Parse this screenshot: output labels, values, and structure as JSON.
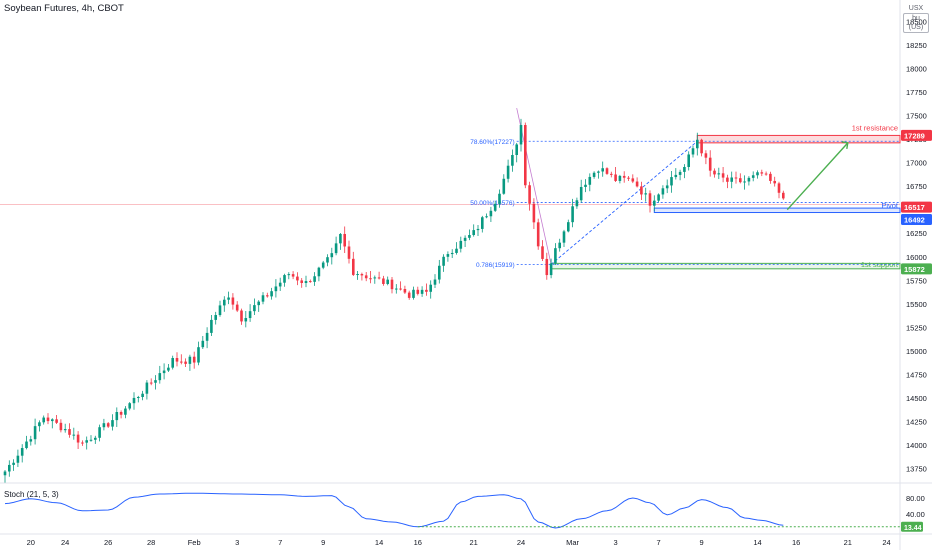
{
  "header": {
    "title": "Soybean Futures, 4h, CBOT",
    "currency": "USX",
    "unit": "bu (US)"
  },
  "chart_data": {
    "type": "candlestick",
    "y_axis": {
      "range": [
        13650,
        18600
      ],
      "ticks": [
        "18500",
        "18250",
        "18000",
        "17750",
        "17500",
        "17250",
        "17000",
        "16750",
        "16500",
        "16250",
        "16000",
        "15750",
        "15500",
        "15250",
        "15000",
        "14750",
        "14500",
        "14250",
        "14000",
        "13750"
      ]
    },
    "x_axis": {
      "range": [
        0,
        209
      ],
      "ticks": [
        {
          "label": "20",
          "x": 6
        },
        {
          "label": "24",
          "x": 14
        },
        {
          "label": "26",
          "x": 24
        },
        {
          "label": "28",
          "x": 34
        },
        {
          "label": "Feb",
          "x": 44
        },
        {
          "label": "3",
          "x": 54
        },
        {
          "label": "7",
          "x": 64
        },
        {
          "label": "9",
          "x": 74
        },
        {
          "label": "14",
          "x": 87
        },
        {
          "label": "16",
          "x": 96
        },
        {
          "label": "21",
          "x": 109
        },
        {
          "label": "24",
          "x": 120
        },
        {
          "label": "Mar",
          "x": 132
        },
        {
          "label": "3",
          "x": 142
        },
        {
          "label": "7",
          "x": 152
        },
        {
          "label": "9",
          "x": 162
        },
        {
          "label": "14",
          "x": 175
        },
        {
          "label": "16",
          "x": 184
        },
        {
          "label": "21",
          "x": 196
        },
        {
          "label": "24",
          "x": 205
        }
      ]
    },
    "anchors": [
      {
        "x": 0,
        "c": 13720
      },
      {
        "x": 6,
        "c": 14100
      },
      {
        "x": 9,
        "c": 14300
      },
      {
        "x": 14,
        "c": 14170
      },
      {
        "x": 18,
        "c": 14020
      },
      {
        "x": 22,
        "c": 14150
      },
      {
        "x": 27,
        "c": 14350
      },
      {
        "x": 33,
        "c": 14620
      },
      {
        "x": 39,
        "c": 14900
      },
      {
        "x": 44,
        "c": 14900
      },
      {
        "x": 48,
        "c": 15320
      },
      {
        "x": 52,
        "c": 15600
      },
      {
        "x": 55,
        "c": 15350
      },
      {
        "x": 60,
        "c": 15550
      },
      {
        "x": 66,
        "c": 15820
      },
      {
        "x": 70,
        "c": 15720
      },
      {
        "x": 76,
        "c": 16000
      },
      {
        "x": 78,
        "c": 16220
      },
      {
        "x": 81,
        "c": 15850
      },
      {
        "x": 85,
        "c": 15780
      },
      {
        "x": 90,
        "c": 15700
      },
      {
        "x": 94,
        "c": 15600
      },
      {
        "x": 98,
        "c": 15620
      },
      {
        "x": 103,
        "c": 16050
      },
      {
        "x": 109,
        "c": 16250
      },
      {
        "x": 114,
        "c": 16600
      },
      {
        "x": 118,
        "c": 17050
      },
      {
        "x": 120,
        "c": 17400
      },
      {
        "x": 121,
        "c": 16800
      },
      {
        "x": 124,
        "c": 16150
      },
      {
        "x": 126,
        "c": 15830
      },
      {
        "x": 130,
        "c": 16300
      },
      {
        "x": 134,
        "c": 16750
      },
      {
        "x": 138,
        "c": 16950
      },
      {
        "x": 142,
        "c": 16820
      },
      {
        "x": 146,
        "c": 16820
      },
      {
        "x": 150,
        "c": 16580
      },
      {
        "x": 154,
        "c": 16800
      },
      {
        "x": 158,
        "c": 16950
      },
      {
        "x": 161,
        "c": 17250
      },
      {
        "x": 164,
        "c": 16900
      },
      {
        "x": 168,
        "c": 16800
      },
      {
        "x": 172,
        "c": 16800
      },
      {
        "x": 176,
        "c": 16880
      },
      {
        "x": 179,
        "c": 16750
      },
      {
        "x": 181,
        "c": 16620
      }
    ],
    "levels": [
      {
        "name": "1st resistance",
        "value": 17289,
        "label": "17289",
        "color": "#f23645"
      },
      {
        "name": "Pivot",
        "value": 16517,
        "label": "16517",
        "color": "#2962ff"
      },
      {
        "name": "1st support",
        "value": 15872,
        "label": "15872",
        "color": "#4caf50"
      }
    ],
    "current_price": {
      "value": 16492,
      "label": "16492",
      "color": "#2962ff"
    },
    "fibonacci": [
      {
        "label": "78.60%(17227)",
        "value": 17227
      },
      {
        "label": "50.00%(16576)",
        "value": 16576
      },
      {
        "label": "0.786(15919)",
        "value": 15919
      }
    ],
    "stochastic": {
      "title": "Stoch (21, 5, 3)",
      "ticks": [
        "80.00",
        "40.00"
      ],
      "current": "13.44",
      "range": [
        0,
        100
      ],
      "anchors": [
        {
          "x": 0,
          "v": 66
        },
        {
          "x": 6,
          "v": 78
        },
        {
          "x": 12,
          "v": 68
        },
        {
          "x": 18,
          "v": 48
        },
        {
          "x": 24,
          "v": 50
        },
        {
          "x": 30,
          "v": 82
        },
        {
          "x": 36,
          "v": 90
        },
        {
          "x": 44,
          "v": 92
        },
        {
          "x": 54,
          "v": 90
        },
        {
          "x": 64,
          "v": 88
        },
        {
          "x": 70,
          "v": 84
        },
        {
          "x": 76,
          "v": 86
        },
        {
          "x": 80,
          "v": 58
        },
        {
          "x": 84,
          "v": 28
        },
        {
          "x": 90,
          "v": 20
        },
        {
          "x": 96,
          "v": 8
        },
        {
          "x": 102,
          "v": 22
        },
        {
          "x": 106,
          "v": 70
        },
        {
          "x": 110,
          "v": 84
        },
        {
          "x": 116,
          "v": 88
        },
        {
          "x": 120,
          "v": 78
        },
        {
          "x": 124,
          "v": 20
        },
        {
          "x": 128,
          "v": 5
        },
        {
          "x": 134,
          "v": 28
        },
        {
          "x": 140,
          "v": 48
        },
        {
          "x": 146,
          "v": 80
        },
        {
          "x": 150,
          "v": 68
        },
        {
          "x": 154,
          "v": 38
        },
        {
          "x": 158,
          "v": 55
        },
        {
          "x": 162,
          "v": 76
        },
        {
          "x": 168,
          "v": 56
        },
        {
          "x": 172,
          "v": 30
        },
        {
          "x": 176,
          "v": 24
        },
        {
          "x": 181,
          "v": 12
        }
      ]
    },
    "colors": {
      "up": "#089981",
      "down": "#f23645",
      "stoch": "#2962ff",
      "arrow": "#4caf50"
    }
  }
}
